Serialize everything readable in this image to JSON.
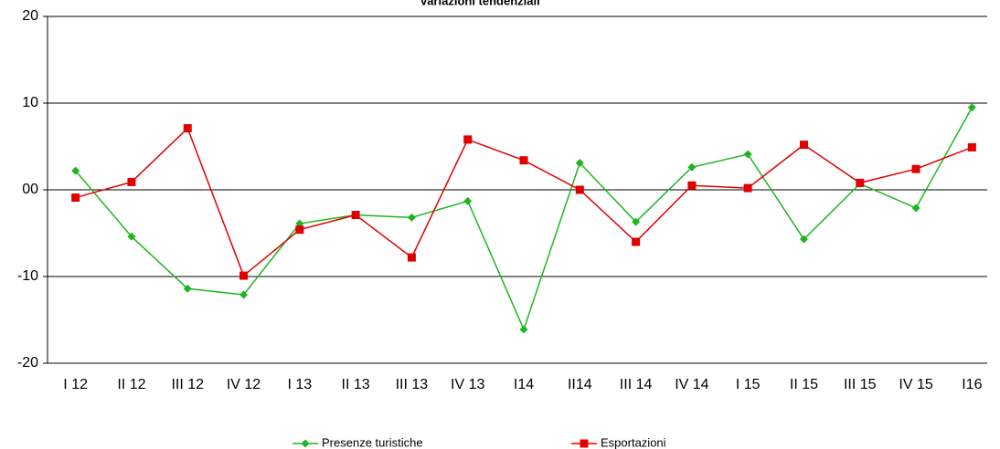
{
  "chart_data": {
    "type": "line",
    "title": "Variazioni tendenziali",
    "categories": [
      "I 12",
      "II 12",
      "III 12",
      "IV 12",
      "I 13",
      "II 13",
      "III 13",
      "IV 13",
      "I14",
      "II14",
      "III 14",
      "IV 14",
      "I 15",
      "II 15",
      "III 15",
      "IV 15",
      "I16"
    ],
    "series": [
      {
        "name": "Presenze turistiche",
        "color": "#1fb51f",
        "marker": "diamond",
        "values": [
          2.2,
          -5.4,
          -11.4,
          -12.1,
          -3.9,
          -2.9,
          -3.2,
          -1.3,
          -16.1,
          3.1,
          -3.7,
          2.6,
          4.1,
          -5.7,
          0.7,
          -2.1,
          9.5
        ]
      },
      {
        "name": "Esportazioni",
        "color": "#e00000",
        "marker": "square",
        "values": [
          -0.9,
          0.9,
          7.1,
          -9.9,
          -4.6,
          -2.9,
          -7.8,
          5.8,
          3.4,
          0,
          -6.0,
          0.5,
          0.2,
          5.2,
          0.8,
          2.4,
          4.9
        ]
      }
    ],
    "ylim": [
      -20,
      20
    ],
    "yticks": [
      -20,
      -10,
      {
        "value": 0,
        "label": "00"
      },
      10,
      20
    ],
    "grid": true,
    "legend": "bottom"
  }
}
